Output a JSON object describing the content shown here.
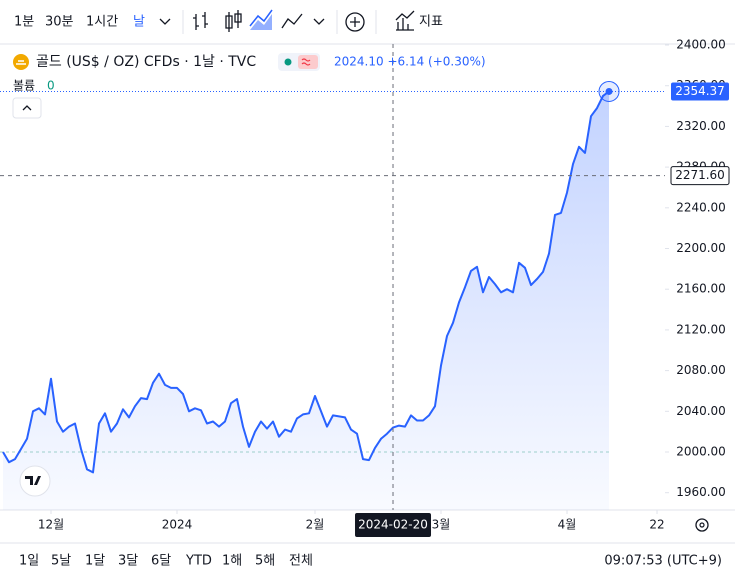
{
  "toolbar": {
    "intervals": [
      "1분",
      "30분",
      "1시간",
      "날"
    ],
    "indicators": "지표"
  },
  "legend": {
    "symbol": "골드 (US$ / OZ) CFDs · 1날 · TVC",
    "quote": "2024.10 +6.14 (+0.30%)",
    "volume_label": "볼륨",
    "volume_value": "0"
  },
  "ranges": [
    "1일",
    "5날",
    "1달",
    "3달",
    "6달",
    "YTD",
    "1해",
    "5해",
    "전체"
  ],
  "clock": "09:07:53 (UTC+9)",
  "chart_data": {
    "type": "area",
    "color": "#2962ff",
    "values": [
      2000,
      1990,
      1993,
      2003,
      2013,
      2040,
      2043,
      2037,
      2072,
      2030,
      2020,
      2025,
      2028,
      2003,
      1983,
      1980,
      2028,
      2038,
      2020,
      2028,
      2042,
      2034,
      2045,
      2053,
      2052,
      2068,
      2077,
      2066,
      2063,
      2063,
      2057,
      2040,
      2043,
      2041,
      2028,
      2030,
      2025,
      2030,
      2048,
      2052,
      2025,
      2005,
      2020,
      2030,
      2023,
      2030,
      2015,
      2022,
      2020,
      2033,
      2037,
      2038,
      2055,
      2040,
      2025,
      2036,
      2035,
      2034,
      2022,
      2018,
      1993,
      1992,
      2004,
      2013,
      2018,
      2024,
      2026,
      2025,
      2036,
      2031,
      2031,
      2036,
      2045,
      2085,
      2114,
      2127,
      2147,
      2162,
      2178,
      2182,
      2157,
      2172,
      2165,
      2157,
      2160,
      2157,
      2186,
      2181,
      2164,
      2170,
      2177,
      2195,
      2233,
      2235,
      2255,
      2283,
      2300,
      2294,
      2330,
      2338,
      2350,
      2354.37
    ],
    "xlim": [
      -0.5,
      110.33
    ],
    "xticks": [
      {
        "value": 8,
        "label": "12월"
      },
      {
        "value": 29,
        "label": "2024"
      },
      {
        "value": 52,
        "label": "2월"
      },
      {
        "value": 73,
        "label": "3월"
      },
      {
        "value": 94,
        "label": "4월"
      },
      {
        "value": 109,
        "label": "22"
      }
    ],
    "ylim": [
      1943,
      2401
    ],
    "yticks": [
      {
        "value": 1960,
        "label": "1960.00"
      },
      {
        "value": 2000,
        "label": "2000.00"
      },
      {
        "value": 2040,
        "label": "2040.00"
      },
      {
        "value": 2080,
        "label": "2080.00"
      },
      {
        "value": 2120,
        "label": "2120.00"
      },
      {
        "value": 2160,
        "label": "2160.00"
      },
      {
        "value": 2200,
        "label": "2200.00"
      },
      {
        "value": 2240,
        "label": "2240.00"
      },
      {
        "value": 2280,
        "label": "2280.00"
      },
      {
        "value": 2320,
        "label": "2320.00"
      },
      {
        "value": 2360,
        "label": "2360.00"
      },
      {
        "value": 2400,
        "label": "2400.00"
      }
    ],
    "last_price": {
      "value": 2354.37,
      "label": "2354.37"
    },
    "reference_line": 2000,
    "crosshair": {
      "x": 65,
      "x_label": "2024-02-20",
      "y": {
        "value": 2271.6,
        "label": "2271.60"
      }
    }
  }
}
